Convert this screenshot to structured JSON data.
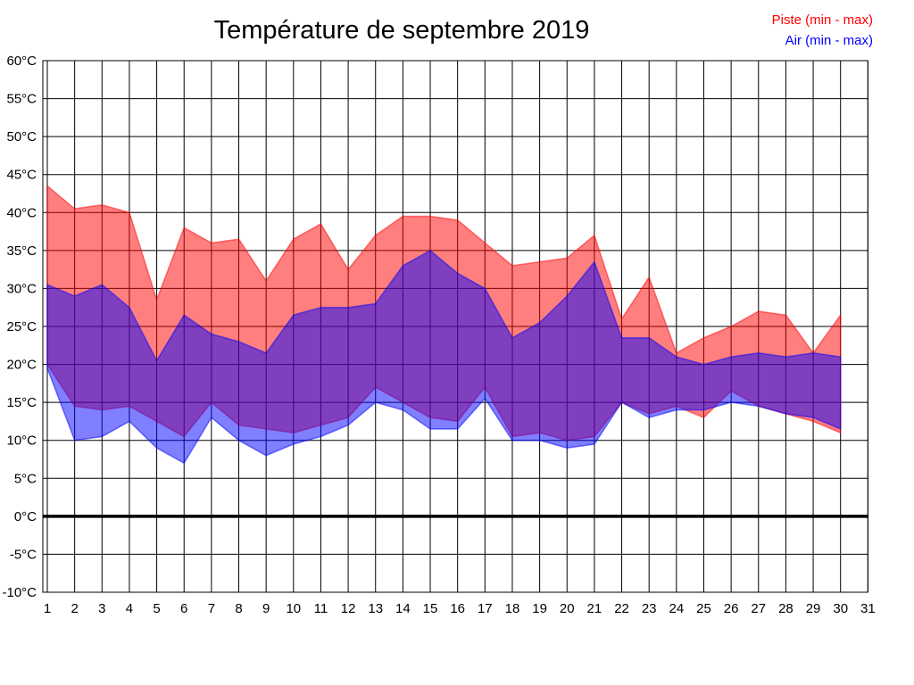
{
  "title": "Température de septembre 2019",
  "legend": {
    "piste": "Piste (min - max)",
    "air": "Air (min - max)"
  },
  "colors": {
    "piste": "#ff0000",
    "air": "#0000ff",
    "grid": "#000000",
    "zero_line": "#000000",
    "background": "#ffffff"
  },
  "chart_data": {
    "type": "area",
    "title": "Température de septembre 2019",
    "x_unit": "day of month",
    "y_unit": "°C",
    "x": [
      1,
      2,
      3,
      4,
      5,
      6,
      7,
      8,
      9,
      10,
      11,
      12,
      13,
      14,
      15,
      16,
      17,
      18,
      19,
      20,
      21,
      22,
      23,
      24,
      25,
      26,
      27,
      28,
      29,
      30
    ],
    "series": [
      {
        "name": "Piste (min - max)",
        "color": "#ff0000",
        "max": [
          43.5,
          40.5,
          41,
          40,
          28.5,
          38,
          36,
          36.5,
          31,
          36.5,
          38.5,
          32.5,
          37,
          39.5,
          39.5,
          39,
          36,
          33,
          33.5,
          34,
          37,
          26,
          31.5,
          21.5,
          23.5,
          25,
          27,
          26.5,
          21.5,
          26.5
        ],
        "min": [
          20,
          14.5,
          14,
          14.5,
          12.5,
          10.5,
          15,
          12,
          11.5,
          11,
          12,
          13,
          17,
          15,
          13,
          12.5,
          17,
          10.5,
          11,
          10,
          10.5,
          15,
          13.5,
          14.5,
          13,
          16.5,
          14.5,
          13.5,
          12.5,
          11
        ]
      },
      {
        "name": "Air (min - max)",
        "color": "#0000ff",
        "max": [
          30.5,
          29,
          30.5,
          27.5,
          20.5,
          26.5,
          24,
          23,
          21.5,
          26.5,
          27.5,
          27.5,
          28,
          33,
          35,
          32,
          30,
          23.5,
          25.5,
          29,
          33.5,
          23.5,
          23.5,
          21,
          20,
          21,
          21.5,
          21,
          21.5,
          21
        ],
        "min": [
          19.5,
          10,
          10.5,
          12.5,
          9,
          7,
          13,
          10,
          8,
          9.5,
          10.5,
          12,
          15,
          14,
          11.5,
          11.5,
          15.5,
          10,
          10,
          9,
          9.5,
          15,
          13,
          14,
          14,
          15,
          14.5,
          13.5,
          13,
          11.5
        ]
      }
    ],
    "fill_opacity": 0.5,
    "x_axis": {
      "ticks": [
        1,
        2,
        3,
        4,
        5,
        6,
        7,
        8,
        9,
        10,
        11,
        12,
        13,
        14,
        15,
        16,
        17,
        18,
        19,
        20,
        21,
        22,
        23,
        24,
        25,
        26,
        27,
        28,
        29,
        30,
        31
      ]
    },
    "y_axis": {
      "values": [
        60,
        55,
        50,
        45,
        40,
        35,
        30,
        25,
        20,
        15,
        10,
        5,
        0,
        -5,
        -10
      ],
      "labels": [
        "60°C",
        "55°C",
        "50°C",
        "45°C",
        "40°C",
        "35°C",
        "30°C",
        "25°C",
        "20°C",
        "15°C",
        "10°C",
        "5°C",
        "0°C",
        "-5°C",
        "-10°C"
      ],
      "ylim": [
        -10,
        60
      ],
      "tick_step": 5
    },
    "grid": true,
    "zero_line_bold": true,
    "legend_position": "top-right"
  }
}
